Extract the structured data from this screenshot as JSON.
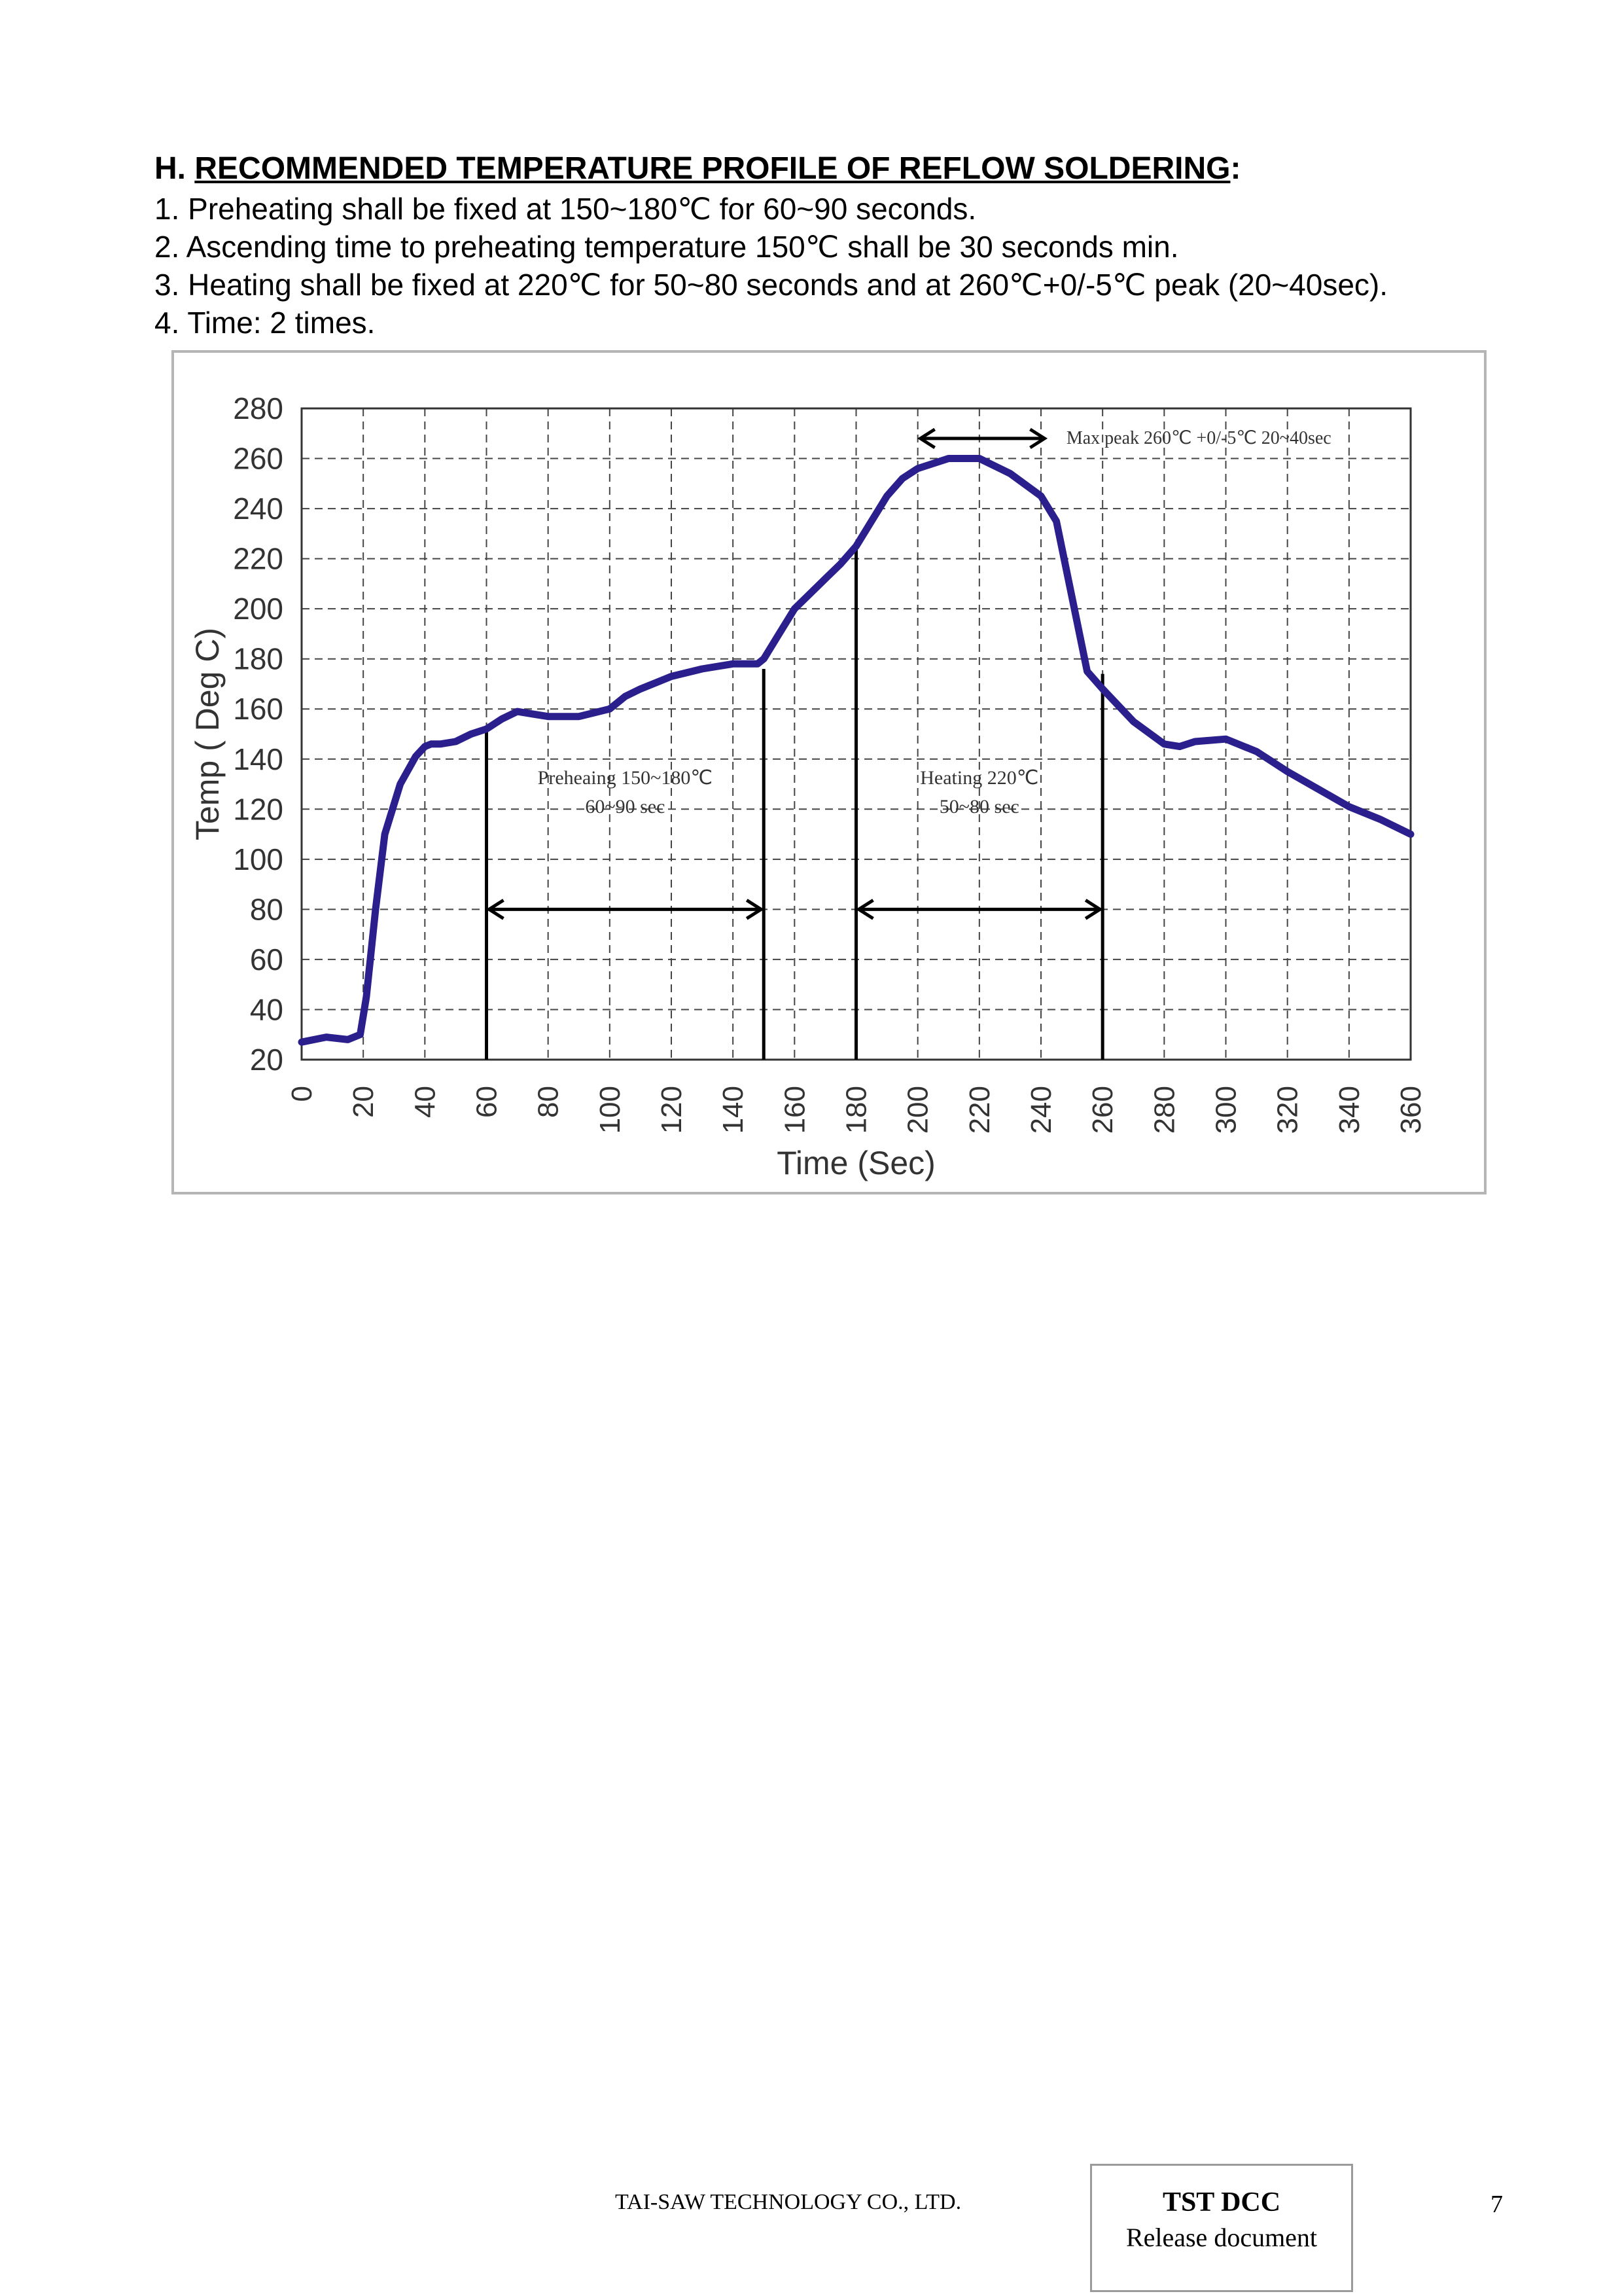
{
  "section": {
    "prefix": "H. ",
    "title": "RECOMMENDED TEMPERATURE PROFILE OF REFLOW SOLDERING",
    "suffix": ":"
  },
  "lines": [
    "1. Preheating shall be fixed at 150~180℃ for 60~90 seconds.",
    "2. Ascending time to preheating temperature 150℃ shall be 30 seconds min.",
    "3. Heating shall be fixed at 220℃ for 50~80 seconds and at 260℃+0/-5℃ peak (20~40sec).",
    "4. Time: 2 times."
  ],
  "chart_data": {
    "type": "line",
    "xlabel": "Time (Sec)",
    "ylabel": "Temp ( Deg C)",
    "xlim": [
      0,
      360
    ],
    "ylim": [
      20,
      280
    ],
    "x_ticks": [
      0,
      20,
      40,
      60,
      80,
      100,
      120,
      140,
      160,
      180,
      200,
      220,
      240,
      260,
      280,
      300,
      320,
      340,
      360
    ],
    "y_ticks": [
      20,
      40,
      60,
      80,
      100,
      120,
      140,
      160,
      180,
      200,
      220,
      240,
      260,
      280
    ],
    "grid": true,
    "series": [
      {
        "color": "#2a1f8c",
        "x": [
          0,
          8,
          15,
          19,
          21,
          24,
          27,
          32,
          37,
          40,
          42,
          45,
          50,
          55,
          60,
          65,
          70,
          75,
          80,
          90,
          100,
          105,
          110,
          120,
          130,
          140,
          148,
          150,
          155,
          160,
          165,
          170,
          175,
          180,
          185,
          190,
          195,
          200,
          210,
          220,
          230,
          240,
          245,
          250,
          255,
          260,
          270,
          280,
          285,
          290,
          300,
          310,
          320,
          330,
          340,
          350,
          360
        ],
        "y": [
          27,
          29,
          28,
          30,
          45,
          80,
          110,
          130,
          141,
          145,
          146,
          146,
          147,
          150,
          152,
          156,
          159,
          158,
          157,
          157,
          160,
          165,
          168,
          173,
          176,
          178,
          178,
          180,
          190,
          200,
          206,
          212,
          218,
          225,
          235,
          245,
          252,
          256,
          260,
          260,
          254,
          245,
          235,
          205,
          175,
          168,
          155,
          146,
          145,
          147,
          148,
          143,
          135,
          128,
          121,
          116,
          110
        ]
      }
    ],
    "markers": [
      {
        "x": 60,
        "y_top": 152
      },
      {
        "x": 150,
        "y_top": 176
      },
      {
        "x": 180,
        "y_top": 225
      },
      {
        "x": 260,
        "y_top": 174
      }
    ],
    "spans": [
      {
        "x1": 60,
        "x2": 150,
        "y": 80
      },
      {
        "x1": 180,
        "x2": 260,
        "y": 80
      },
      {
        "x1": 200,
        "x2": 242,
        "y": 268
      }
    ],
    "annotations": [
      {
        "lines": [
          "Preheaing 150~180℃",
          "60~90 sec"
        ],
        "x": 105,
        "y": 130
      },
      {
        "lines": [
          "Heating 220℃",
          "50~80 sec"
        ],
        "x": 220,
        "y": 130
      },
      {
        "lines": [
          "Max peak 260℃ +0/-5℃ 20~40sec"
        ],
        "x": 244,
        "y": 268
      }
    ]
  },
  "footer": {
    "company": "TAI-SAW TECHNOLOGY CO., LTD.",
    "dcc_title": "TST DCC",
    "dcc_subtitle": "Release document",
    "page_number": "7"
  }
}
